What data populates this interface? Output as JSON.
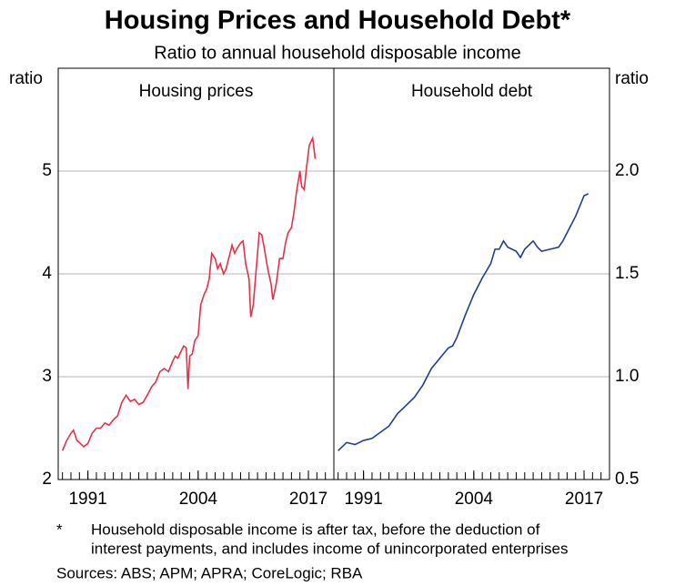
{
  "title": "Housing Prices and Household Debt*",
  "subtitle": "Ratio to annual household disposable income",
  "footnote_marker": "*",
  "footnote": [
    "Household disposable income is after tax, before the deduction of",
    "interest payments, and includes income of unincorporated enterprises"
  ],
  "sources": "Sources: ABS; APM; APRA; CoreLogic; RBA",
  "chart_data": [
    {
      "type": "line",
      "title": "Housing prices",
      "ylabel": "ratio",
      "y_axis_side": "left",
      "color": "#e8304a",
      "grid": true,
      "xlim": [
        1987.5,
        2020
      ],
      "xticks": [
        1991,
        2004,
        2017
      ],
      "ylim": [
        2,
        6
      ],
      "yticks": [
        2,
        3,
        4,
        5
      ],
      "x": [
        1988.0,
        1988.5,
        1989.0,
        1989.3,
        1989.7,
        1990.0,
        1990.5,
        1991.0,
        1991.5,
        1992.0,
        1992.5,
        1993.0,
        1993.5,
        1994.0,
        1994.5,
        1995.0,
        1995.5,
        1996.0,
        1996.5,
        1997.0,
        1997.5,
        1998.0,
        1998.5,
        1999.0,
        1999.5,
        2000.0,
        2000.5,
        2001.0,
        2001.3,
        2001.6,
        2002.0,
        2002.3,
        2002.6,
        2002.8,
        2003.0,
        2003.3,
        2003.6,
        2004.0,
        2004.3,
        2004.7,
        2005.0,
        2005.3,
        2005.6,
        2006.0,
        2006.3,
        2006.6,
        2007.0,
        2007.3,
        2007.6,
        2008.0,
        2008.3,
        2008.6,
        2009.0,
        2009.3,
        2009.6,
        2010.0,
        2010.2,
        2010.5,
        2010.8,
        2011.2,
        2011.5,
        2011.8,
        2012.2,
        2012.6,
        2012.8,
        2013.2,
        2013.6,
        2014.0,
        2014.3,
        2014.6,
        2015.0,
        2015.3,
        2015.6,
        2016.0,
        2016.2,
        2016.5,
        2016.8,
        2017.1,
        2017.5,
        2017.8
      ],
      "values": [
        2.28,
        2.38,
        2.45,
        2.48,
        2.38,
        2.36,
        2.32,
        2.35,
        2.45,
        2.5,
        2.5,
        2.55,
        2.53,
        2.58,
        2.62,
        2.75,
        2.82,
        2.76,
        2.78,
        2.73,
        2.75,
        2.82,
        2.9,
        2.95,
        3.05,
        3.08,
        3.05,
        3.15,
        3.2,
        3.18,
        3.25,
        3.3,
        3.28,
        2.88,
        3.2,
        3.22,
        3.35,
        3.4,
        3.7,
        3.8,
        3.85,
        3.95,
        4.2,
        4.15,
        4.05,
        4.1,
        4.0,
        4.05,
        4.15,
        4.28,
        4.2,
        4.25,
        4.3,
        4.32,
        4.1,
        3.95,
        3.58,
        3.7,
        4.0,
        4.4,
        4.38,
        4.25,
        4.05,
        3.9,
        3.75,
        3.9,
        4.15,
        4.15,
        4.3,
        4.4,
        4.45,
        4.6,
        4.8,
        5.0,
        4.85,
        4.82,
        5.05,
        5.25,
        5.32,
        5.12
      ]
    },
    {
      "type": "line",
      "title": "Household debt",
      "ylabel": "ratio",
      "y_axis_side": "right",
      "color": "#1f3f8f",
      "grid": true,
      "xlim": [
        1987.5,
        2020
      ],
      "xticks": [
        1991,
        2004,
        2017
      ],
      "ylim": [
        0.5,
        2.5
      ],
      "yticks": [
        0.5,
        {
          "value": 1,
          "label": "1.0"
        },
        1.5,
        {
          "value": 2,
          "label": "2.0"
        }
      ],
      "x": [
        1988,
        1989,
        1990,
        1991,
        1992,
        1993,
        1994,
        1995,
        1996,
        1997,
        1998,
        1999,
        2000,
        2001,
        2001.5,
        2002,
        2003,
        2004,
        2005,
        2006,
        2006.5,
        2007,
        2007.5,
        2008,
        2009,
        2009.5,
        2010,
        2011,
        2011.5,
        2012,
        2013,
        2014,
        2014.5,
        2015,
        2015.5,
        2016,
        2016.5,
        2017,
        2017.5
      ],
      "values": [
        0.64,
        0.68,
        0.67,
        0.69,
        0.7,
        0.73,
        0.76,
        0.82,
        0.86,
        0.9,
        0.96,
        1.04,
        1.09,
        1.14,
        1.15,
        1.19,
        1.3,
        1.4,
        1.48,
        1.55,
        1.62,
        1.62,
        1.66,
        1.63,
        1.61,
        1.58,
        1.62,
        1.66,
        1.63,
        1.61,
        1.62,
        1.63,
        1.66,
        1.7,
        1.74,
        1.78,
        1.83,
        1.88,
        1.89
      ]
    }
  ]
}
